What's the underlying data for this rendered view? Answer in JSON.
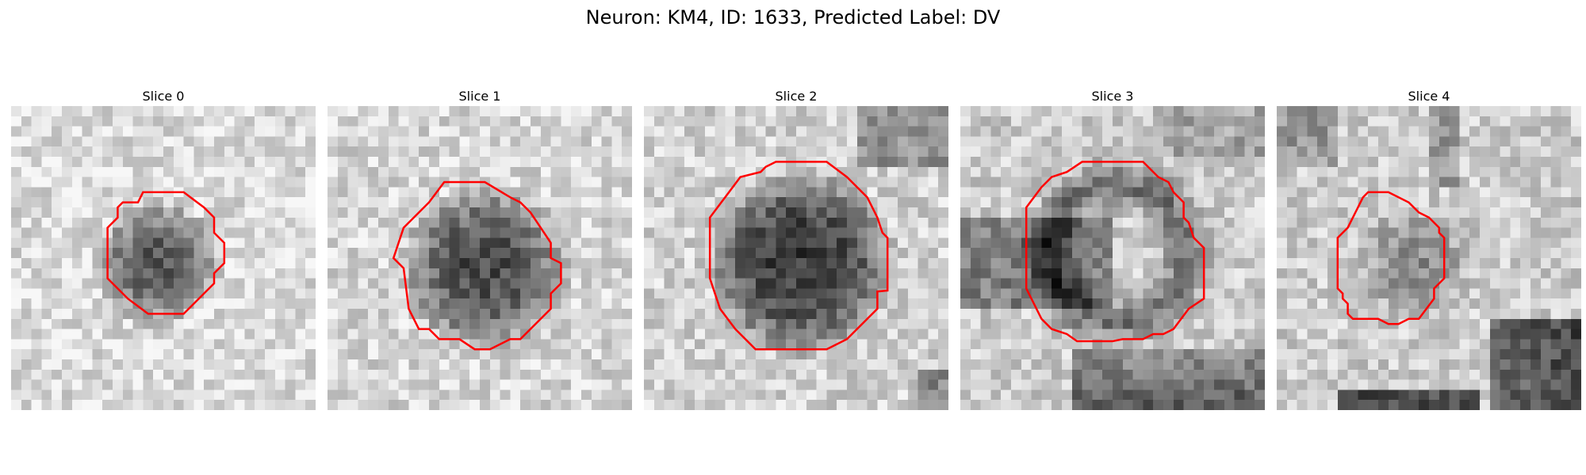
{
  "figure": {
    "title": "Neuron: KM4, ID: 1633, Predicted Label: DV"
  },
  "panels": [
    {
      "label": "Slice 0"
    },
    {
      "label": "Slice 1"
    },
    {
      "label": "Slice 2"
    },
    {
      "label": "Slice 3"
    },
    {
      "label": "Slice 4"
    }
  ],
  "colors": {
    "contour": "#ff0000"
  }
}
